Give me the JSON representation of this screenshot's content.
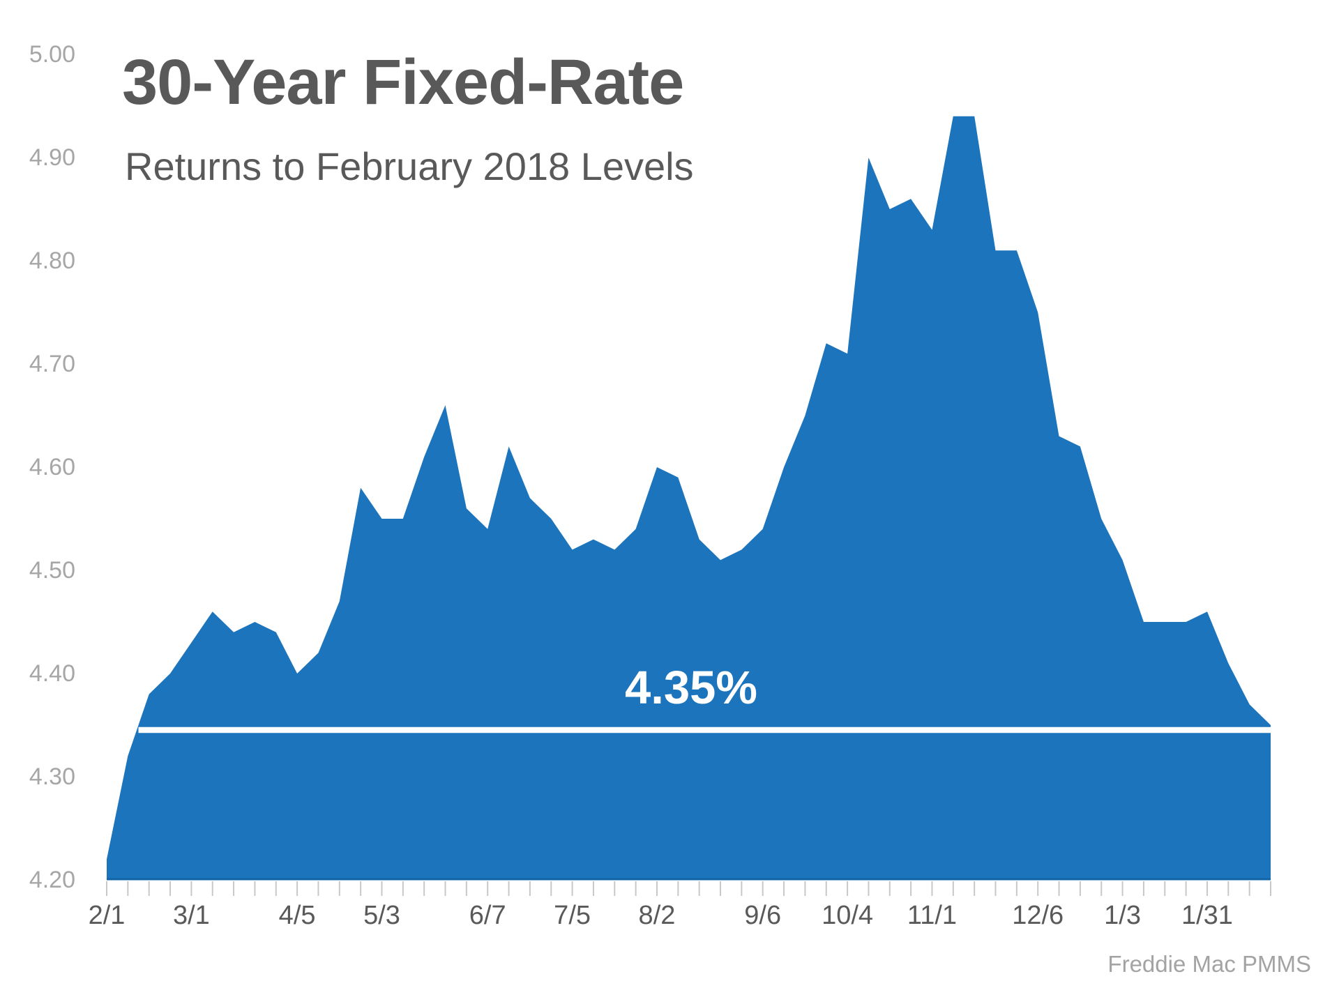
{
  "title": "30-Year Fixed-Rate",
  "subtitle": "Returns to February 2018 Levels",
  "source": "Freddie Mac PMMS",
  "annotation": {
    "label": "4.35%",
    "value": 4.35
  },
  "colors": {
    "area": "#1B74BC",
    "area_bottom_edge": "#1465A6",
    "reference_line": "#FFFFFF",
    "annotation_text": "#FFFFFF",
    "title_text": "#595959",
    "y_label_text": "#A6A6A6",
    "x_label_text": "#595959",
    "tick": "#C8C8C8"
  },
  "chart_data": {
    "type": "area",
    "title": "30-Year Fixed-Rate",
    "subtitle": "Returns to February 2018 Levels",
    "source": "Freddie Mac PMMS",
    "xlabel": "",
    "ylabel": "",
    "ylim": [
      4.2,
      5.0
    ],
    "grid": false,
    "legend": false,
    "reference_line": {
      "value": 4.35,
      "label": "4.35%"
    },
    "y_ticks": [
      {
        "label": "5.00",
        "value": 5.0
      },
      {
        "label": "4.90",
        "value": 4.9
      },
      {
        "label": "4.80",
        "value": 4.8
      },
      {
        "label": "4.70",
        "value": 4.7
      },
      {
        "label": "4.60",
        "value": 4.6
      },
      {
        "label": "4.50",
        "value": 4.5
      },
      {
        "label": "4.40",
        "value": 4.4
      },
      {
        "label": "4.30",
        "value": 4.3
      },
      {
        "label": "4.20",
        "value": 4.2
      }
    ],
    "x_ticks": [
      {
        "label": "2/1",
        "week": 0
      },
      {
        "label": "3/1",
        "week": 4
      },
      {
        "label": "4/5",
        "week": 9
      },
      {
        "label": "5/3",
        "week": 13
      },
      {
        "label": "6/7",
        "week": 18
      },
      {
        "label": "7/5",
        "week": 22
      },
      {
        "label": "8/2",
        "week": 26
      },
      {
        "label": "9/6",
        "week": 31
      },
      {
        "label": "10/4",
        "week": 35
      },
      {
        "label": "11/1",
        "week": 39
      },
      {
        "label": "12/6",
        "week": 44
      },
      {
        "label": "1/3",
        "week": 48
      },
      {
        "label": "1/31",
        "week": 52
      }
    ],
    "x": [
      "2/1",
      "2/8",
      "2/15",
      "2/22",
      "3/1",
      "3/8",
      "3/15",
      "3/22",
      "3/29",
      "4/5",
      "4/12",
      "4/19",
      "4/26",
      "5/3",
      "5/10",
      "5/17",
      "5/24",
      "5/31",
      "6/7",
      "6/14",
      "6/21",
      "6/28",
      "7/5",
      "7/12",
      "7/19",
      "7/26",
      "8/2",
      "8/9",
      "8/16",
      "8/23",
      "8/30",
      "9/6",
      "9/13",
      "9/20",
      "9/27",
      "10/4",
      "10/11",
      "10/18",
      "10/25",
      "11/1",
      "11/8",
      "11/15",
      "11/21",
      "11/29",
      "12/6",
      "12/13",
      "12/20",
      "12/27",
      "1/3",
      "1/10",
      "1/17",
      "1/24",
      "1/31",
      "2/7",
      "2/14",
      "2/21"
    ],
    "values": [
      4.22,
      4.32,
      4.38,
      4.4,
      4.43,
      4.46,
      4.44,
      4.45,
      4.44,
      4.4,
      4.42,
      4.47,
      4.58,
      4.55,
      4.55,
      4.61,
      4.66,
      4.56,
      4.54,
      4.62,
      4.57,
      4.55,
      4.52,
      4.53,
      4.52,
      4.54,
      4.6,
      4.59,
      4.53,
      4.51,
      4.52,
      4.54,
      4.6,
      4.65,
      4.72,
      4.71,
      4.9,
      4.85,
      4.86,
      4.83,
      4.94,
      4.94,
      4.81,
      4.81,
      4.75,
      4.63,
      4.62,
      4.55,
      4.51,
      4.45,
      4.45,
      4.45,
      4.46,
      4.41,
      4.37,
      4.35
    ]
  }
}
